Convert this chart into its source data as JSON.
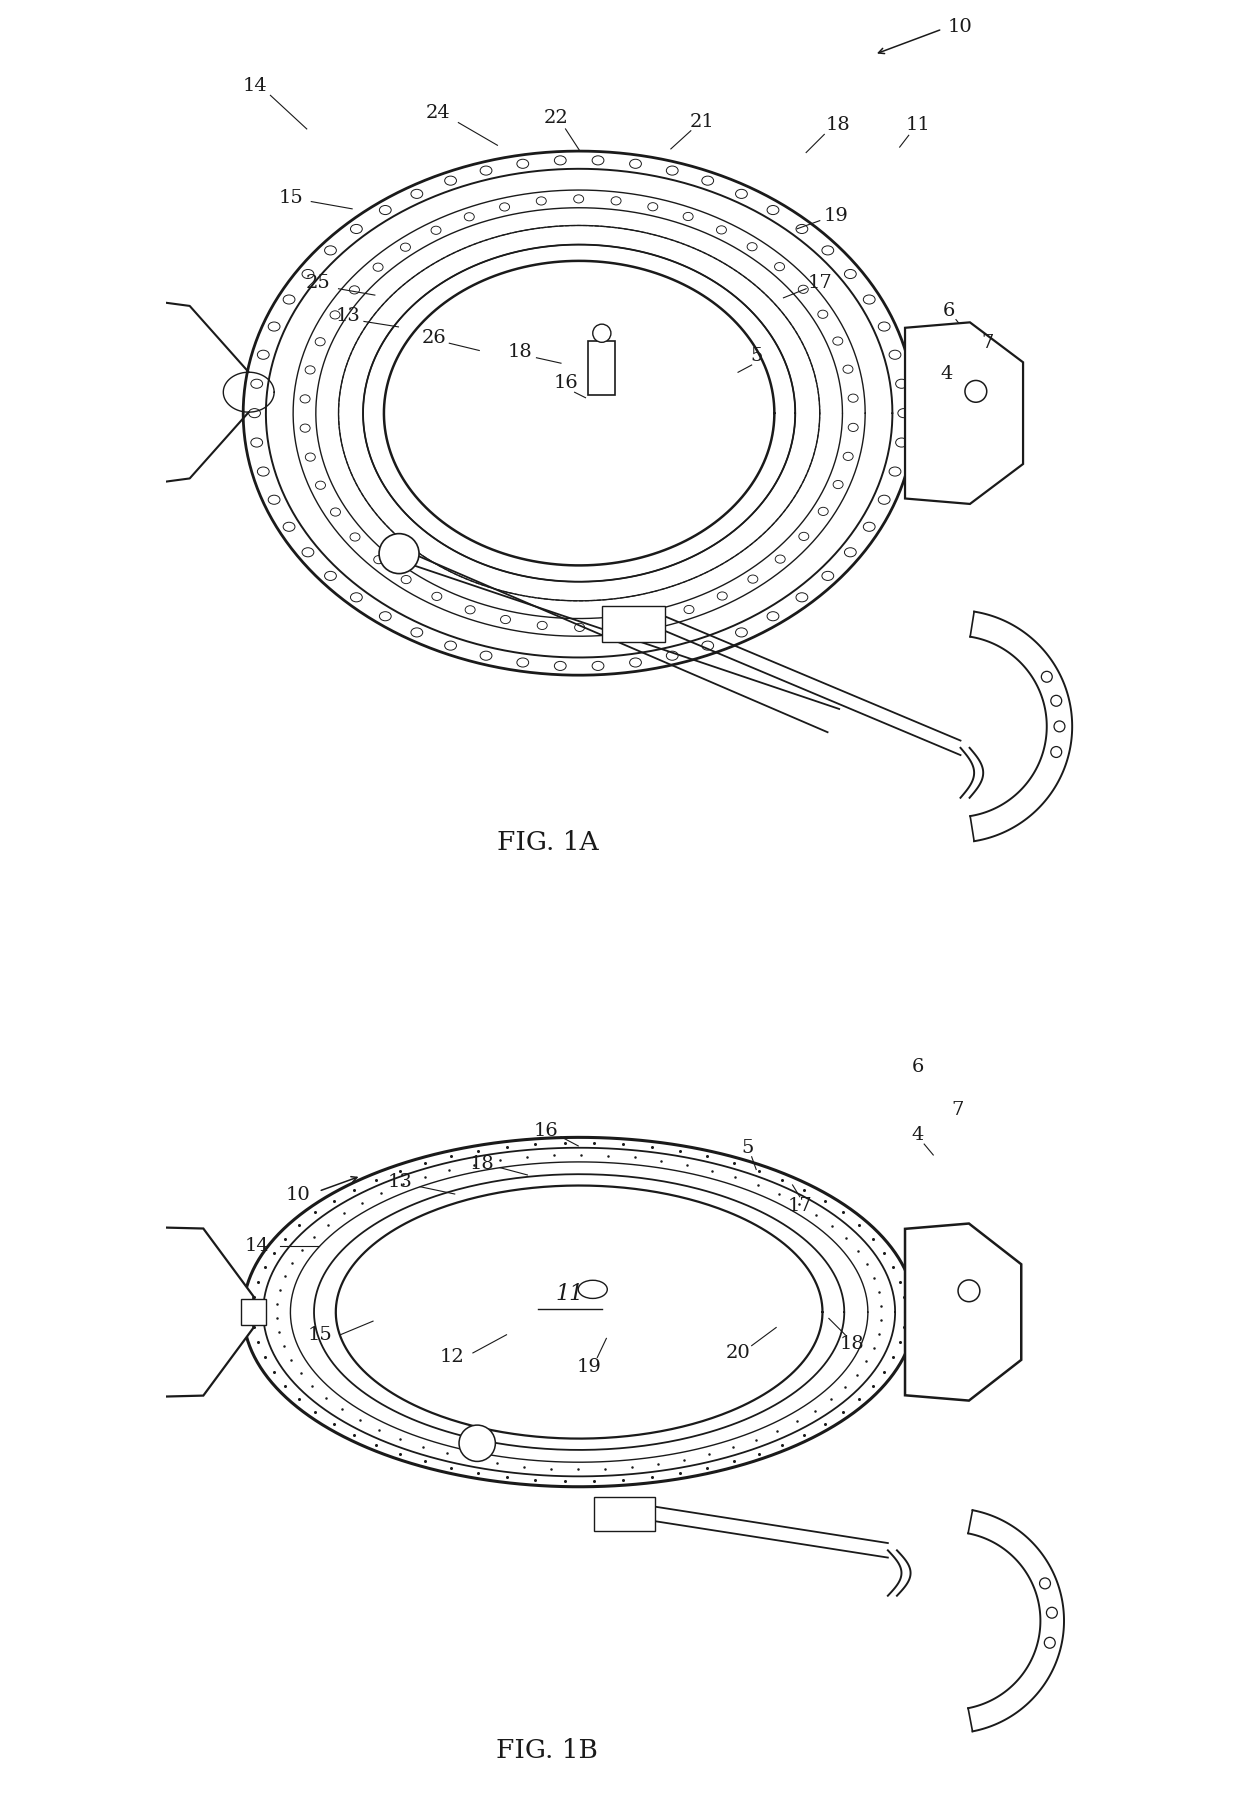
{
  "fig_width": 12.4,
  "fig_height": 18.16,
  "dpi": 100,
  "bg": "#ffffff",
  "lc": "#1a1a1a",
  "fig1a_title": "FIG. 1A",
  "fig1b_title": "FIG. 1B",
  "title_fs": 19,
  "ref_fs": 14
}
